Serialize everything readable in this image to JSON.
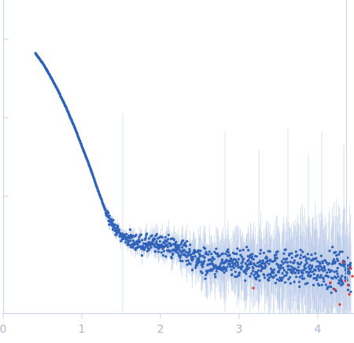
{
  "chart_data": {
    "type": "scatter",
    "title": "",
    "xlabel": "",
    "ylabel": "",
    "y_scale": "log",
    "xlim": [
      0,
      4.45
    ],
    "ylim_log10": [
      -3.7,
      0.0
    ],
    "grid": false,
    "legend": "none",
    "x_ticks": [
      {
        "value": 0,
        "label": "0"
      },
      {
        "value": 1,
        "label": "1"
      },
      {
        "value": 2,
        "label": "2"
      },
      {
        "value": 3,
        "label": "3"
      },
      {
        "value": 4,
        "label": "4"
      }
    ],
    "y_ticks_log10": [
      -0.2,
      -1.2,
      -2.2
    ],
    "colors": {
      "points": "#2f62b8",
      "error_bars": "#b9cbe8",
      "outliers": "#e8332a",
      "axes": "#c9d3e8",
      "tick_labels": "#a9b8d6"
    },
    "series": [
      {
        "points_xy_log10": [
          [
            0.41,
            -0.38
          ],
          [
            0.5,
            -0.5
          ],
          [
            0.6,
            -0.67
          ],
          [
            0.7,
            -0.86
          ],
          [
            0.8,
            -1.07
          ],
          [
            0.9,
            -1.3
          ],
          [
            1.0,
            -1.56
          ],
          [
            1.1,
            -1.82
          ],
          [
            1.2,
            -2.11
          ],
          [
            1.3,
            -2.38
          ],
          [
            1.4,
            -2.58
          ],
          [
            1.5,
            -2.7
          ],
          [
            1.6,
            -2.76
          ],
          [
            1.8,
            -2.82
          ],
          [
            2.0,
            -2.81
          ],
          [
            2.2,
            -2.86
          ],
          [
            2.4,
            -2.96
          ],
          [
            2.6,
            -3.05
          ],
          [
            2.8,
            -3.08
          ],
          [
            3.0,
            -3.09
          ],
          [
            3.2,
            -3.1
          ],
          [
            3.5,
            -3.1
          ],
          [
            3.8,
            -3.11
          ],
          [
            4.1,
            -3.13
          ],
          [
            4.4,
            -3.16
          ]
        ]
      }
    ],
    "outliers_xy_log10": [
      [
        3.18,
        -3.37
      ],
      [
        4.16,
        -3.3
      ],
      [
        4.22,
        -3.39
      ],
      [
        4.28,
        -3.58
      ],
      [
        4.32,
        -3.04
      ],
      [
        4.35,
        -3.28
      ],
      [
        4.38,
        -3.33
      ],
      [
        4.4,
        -3.45
      ],
      [
        4.42,
        -3.12
      ],
      [
        4.44,
        -3.22
      ]
    ]
  }
}
